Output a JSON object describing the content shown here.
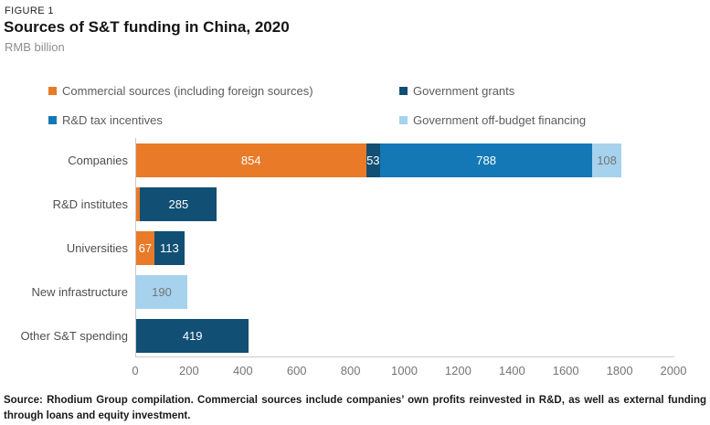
{
  "figure_label": "FIGURE 1",
  "title": "Sources of S&T funding in China, 2020",
  "subtitle": "RMB billion",
  "colors": {
    "commercial": "#E87A28",
    "government_grants": "#124F74",
    "rd_tax_incentives": "#1478B6",
    "off_budget": "#A6D2ED",
    "axis_line": "#C9C9C9",
    "tick_text": "#757575",
    "category_text": "#4F4F4F",
    "bar_label_light": "#FFFFFF",
    "bar_label_dark": "#757575"
  },
  "legend": [
    {
      "label": "Commercial sources (including foreign sources)",
      "color_key": "commercial"
    },
    {
      "label": "Government grants",
      "color_key": "government_grants"
    },
    {
      "label": "R&D tax incentives",
      "color_key": "rd_tax_incentives"
    },
    {
      "label": "Government off-budget financing",
      "color_key": "off_budget"
    }
  ],
  "chart_data": {
    "type": "bar",
    "orientation": "horizontal",
    "stacked": true,
    "title": "Sources of S&T funding in China, 2020",
    "xlabel": "",
    "ylabel": "RMB billion",
    "xlim": [
      0,
      2000
    ],
    "x_ticks": [
      0,
      200,
      400,
      600,
      800,
      1000,
      1200,
      1400,
      1600,
      1800,
      2000
    ],
    "grid": false,
    "legend_position": "top",
    "categories": [
      "Companies",
      "R&D institutes",
      "Universities",
      "New infrastructure",
      "Other S&T spending"
    ],
    "series": [
      {
        "name": "Commercial sources (including foreign sources)",
        "values": [
          854,
          15,
          67,
          0,
          0
        ]
      },
      {
        "name": "Government grants",
        "values": [
          53,
          285,
          113,
          0,
          419
        ]
      },
      {
        "name": "R&D tax incentives",
        "values": [
          788,
          0,
          0,
          0,
          0
        ]
      },
      {
        "name": "Government off-budget financing",
        "values": [
          108,
          0,
          0,
          190,
          0
        ]
      }
    ],
    "rows": [
      {
        "category": "Companies",
        "segments": [
          {
            "series": "Commercial sources (including foreign sources)",
            "color_key": "commercial",
            "value": 854,
            "label": "854"
          },
          {
            "series": "Government grants",
            "color_key": "government_grants",
            "value": 53,
            "label": "53"
          },
          {
            "series": "R&D tax incentives",
            "color_key": "rd_tax_incentives",
            "value": 788,
            "label": "788"
          },
          {
            "series": "Government off-budget financing",
            "color_key": "off_budget",
            "value": 108,
            "label": "108"
          }
        ]
      },
      {
        "category": "R&D institutes",
        "segments": [
          {
            "series": "Commercial sources (including foreign sources)",
            "color_key": "commercial",
            "value": 15,
            "label": ""
          },
          {
            "series": "Government grants",
            "color_key": "government_grants",
            "value": 285,
            "label": "285"
          }
        ]
      },
      {
        "category": "Universities",
        "segments": [
          {
            "series": "Commercial sources (including foreign sources)",
            "color_key": "commercial",
            "value": 67,
            "label": "67"
          },
          {
            "series": "Government grants",
            "color_key": "government_grants",
            "value": 113,
            "label": "113"
          }
        ]
      },
      {
        "category": "New infrastructure",
        "segments": [
          {
            "series": "Government off-budget financing",
            "color_key": "off_budget",
            "value": 190,
            "label": "190"
          }
        ]
      },
      {
        "category": "Other S&T spending",
        "segments": [
          {
            "series": "Government grants",
            "color_key": "government_grants",
            "value": 419,
            "label": "419"
          }
        ]
      }
    ]
  },
  "source_note": "Source: Rhodium Group compilation. Commercial sources include companies’ own profits reinvested in R&D, as well as external funding through loans and equity investment."
}
